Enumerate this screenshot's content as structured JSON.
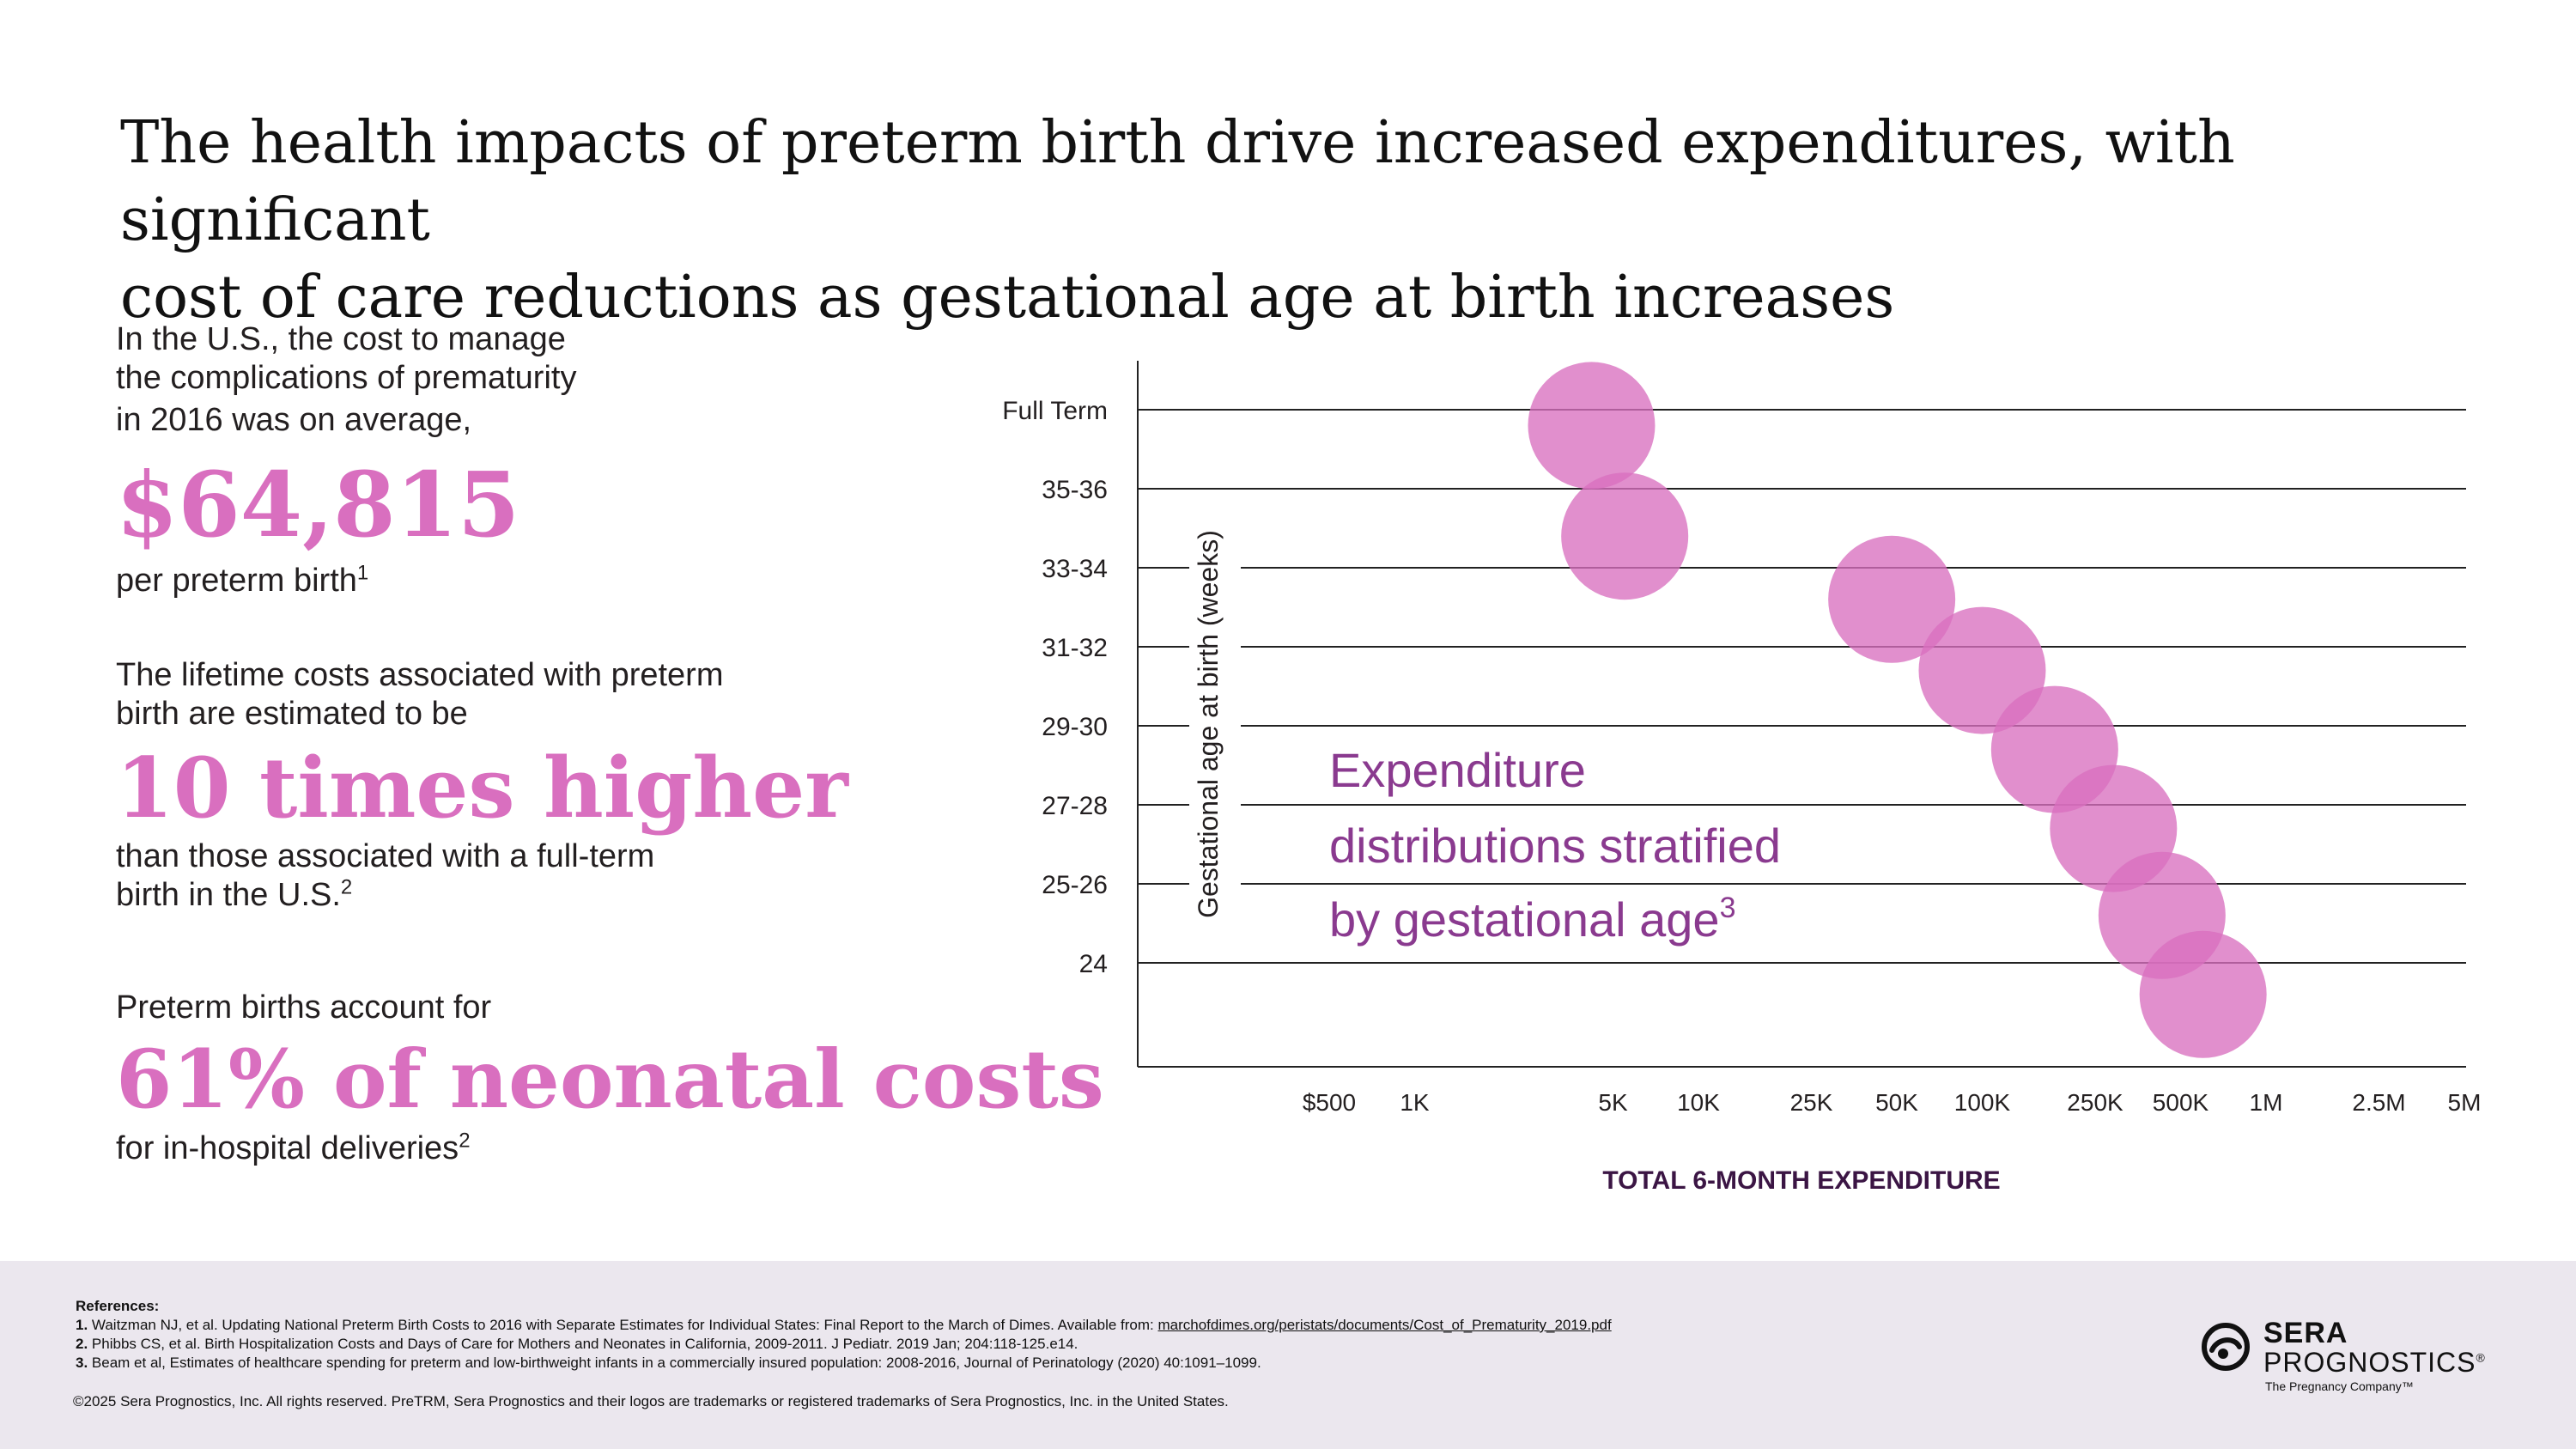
{
  "title": {
    "line1": "The health impacts of preterm birth drive increased expenditures, with significant",
    "line2": "cost of care reductions as gestational age at birth increases"
  },
  "stats": {
    "s1": {
      "line1": "In the U.S., the cost to manage",
      "line2": "the complications of prematurity",
      "line3": "in 2016 was on average,",
      "big": "$64,815",
      "sub": "per preterm birth",
      "sup": "1"
    },
    "s2": {
      "line1": "The lifetime costs associated with preterm",
      "line2": "birth are estimated to be",
      "big": "10 times higher",
      "sub1": "than those associated with a full-term",
      "sub2": "birth in the U.S.",
      "sup": "2"
    },
    "s3": {
      "line1": "Preterm births account for",
      "big": "61% of neonatal costs",
      "sub": "for in-hospital deliveries",
      "sup": "2"
    }
  },
  "colors": {
    "accent": "#d96fbf",
    "bubble": "#d96fbf",
    "annotation": "#8a3a8f",
    "axis_title": "#3b1544"
  },
  "chart_data": {
    "type": "scatter",
    "xlabel": "TOTAL 6-MONTH EXPENDITURE",
    "ylabel": "Gestational age at birth (weeks)",
    "x_scale": "log",
    "x_ticks": [
      {
        "value": 500,
        "label": "$500"
      },
      {
        "value": 1000,
        "label": "1K"
      },
      {
        "value": 5000,
        "label": "5K"
      },
      {
        "value": 10000,
        "label": "10K"
      },
      {
        "value": 25000,
        "label": "25K"
      },
      {
        "value": 50000,
        "label": "50K"
      },
      {
        "value": 100000,
        "label": "100K"
      },
      {
        "value": 250000,
        "label": "250K"
      },
      {
        "value": 500000,
        "label": "500K"
      },
      {
        "value": 1000000,
        "label": "1M"
      },
      {
        "value": 2500000,
        "label": "2.5M"
      },
      {
        "value": 5000000,
        "label": "5M"
      }
    ],
    "categories": [
      "Full Term",
      "35-36",
      "33-34",
      "31-32",
      "29-30",
      "27-28",
      "25-26",
      "24"
    ],
    "points": [
      {
        "category": "Full Term",
        "x": 4200,
        "y_offset": 0.2
      },
      {
        "category": "35-36",
        "x": 5500,
        "y_offset": 0.6
      },
      {
        "category": "33-34",
        "x": 48000,
        "y_offset": 0.4
      },
      {
        "category": "31-32",
        "x": 100000,
        "y_offset": 0.3
      },
      {
        "category": "29-30",
        "x": 180000,
        "y_offset": 0.3
      },
      {
        "category": "27-28",
        "x": 290000,
        "y_offset": 0.3
      },
      {
        "category": "25-26",
        "x": 430000,
        "y_offset": 0.4
      },
      {
        "category": "24",
        "x": 600000,
        "y_offset": 0.4
      }
    ],
    "annotation": {
      "line1": "Expenditure",
      "line2": "distributions stratified",
      "line3": "by gestational age",
      "sup": "3"
    }
  },
  "footer": {
    "refs_title": "References:",
    "ref1_num": "1.",
    "ref1_text": "Waitzman NJ, et al. Updating National Preterm Birth Costs to 2016 with Separate Estimates for Individual States: Final Report to the March of Dimes. Available from:",
    "ref1_url": "marchofdimes.org/peristats/documents/Cost_of_Prematurity_2019.pdf",
    "ref2_num": "2.",
    "ref2_text": "Phibbs CS, et al. Birth Hospitalization Costs and Days of Care for Mothers and Neonates in California, 2009-2011. J Pediatr. 2019 Jan; 204:118-125.e14.",
    "ref3_num": "3.",
    "ref3_text": "Beam et al, Estimates of healthcare spending for preterm and low-birthweight infants in a commercially insured population: 2008-2016, Journal of Perinatology (2020) 40:1091–1099.",
    "copyright": "©2025 Sera Prognostics, Inc. All rights reserved. PreTRM, Sera Prognostics and their logos are trademarks or registered trademarks of Sera Prognostics, Inc. in the United States."
  },
  "logo": {
    "line1": "SERA",
    "line2": "PROGNOSTICS",
    "reg": "®",
    "tagline": "The Pregnancy Company™"
  }
}
